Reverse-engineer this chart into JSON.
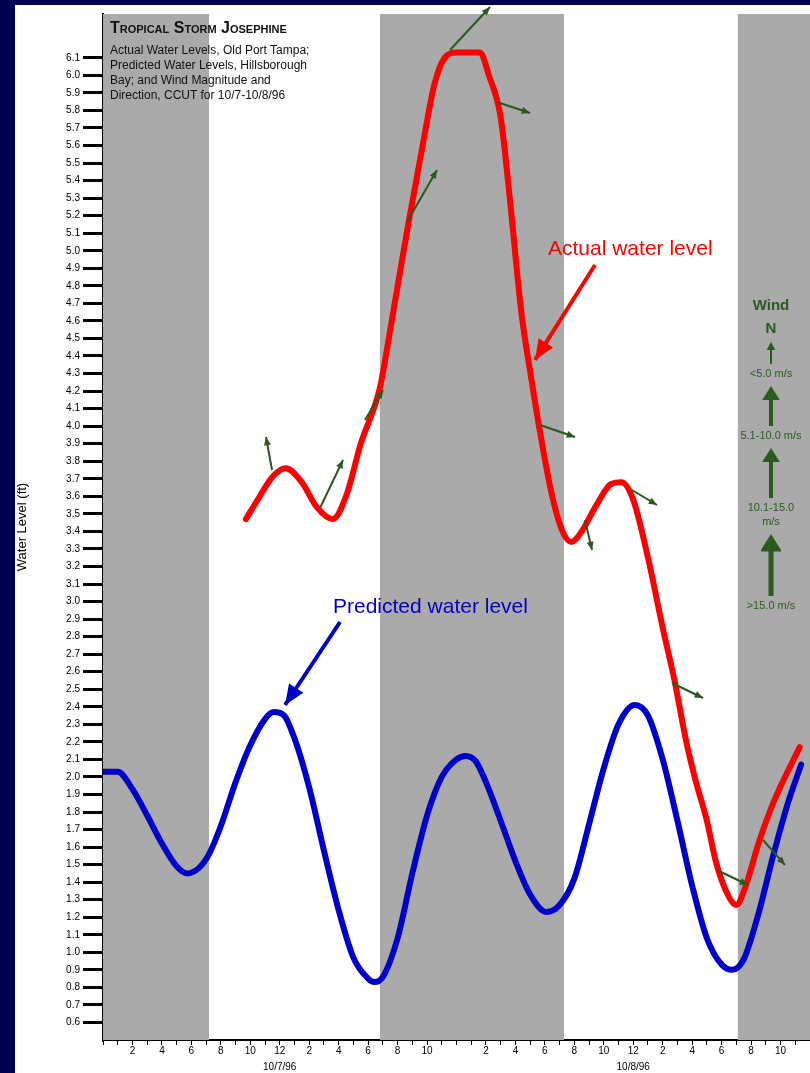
{
  "chart_data": {
    "type": "line",
    "title": "Tropical Storm Josephine",
    "subtitle": "Actual Water Levels, Old Port Tampa; Predicted Water Levels, Hillsborough Bay; and Wind Magnitude and Direction, CCUT for 10/7-10/8/96",
    "ylabel": "Water Level (ft)",
    "xlim": [
      "--10-07T00:00",
      "--10-09T00:00"
    ],
    "xticks": [
      {
        "value": "--10-07T00:00",
        "label": null
      },
      {
        "value": "--10-07T01:00",
        "label": null
      },
      {
        "value": "--10-07T02:00",
        "label": "2"
      },
      {
        "value": "--10-07T03:00",
        "label": null
      },
      {
        "value": "--10-07T04:00",
        "label": "4"
      },
      {
        "value": "--10-07T05:00",
        "label": null
      },
      {
        "value": "--10-07T06:00",
        "label": "6"
      },
      {
        "value": "--10-07T07:00",
        "label": null
      },
      {
        "value": "--10-07T08:00",
        "label": "8"
      },
      {
        "value": "--10-07T09:00",
        "label": null
      },
      {
        "value": "--10-07T10:00",
        "label": "10"
      },
      {
        "value": "--10-07T11:00",
        "label": null
      },
      {
        "value": "--10-07T12:00",
        "label": "12"
      },
      {
        "value": "--10-07T13:00",
        "label": null
      },
      {
        "value": "--10-07T14:00",
        "label": "2"
      },
      {
        "value": "--10-07T15:00",
        "label": null
      },
      {
        "value": "--10-07T16:00",
        "label": "4"
      },
      {
        "value": "--10-07T17:00",
        "label": null
      },
      {
        "value": "--10-07T18:00",
        "label": "6"
      },
      {
        "value": "--10-07T19:00",
        "label": null
      },
      {
        "value": "--10-07T20:00",
        "label": "8"
      },
      {
        "value": "--10-07T21:00",
        "label": null
      },
      {
        "value": "--10-07T22:00",
        "label": "10"
      },
      {
        "value": "--10-07T23:00",
        "label": null
      },
      {
        "value": "--10-08T00:00",
        "label": null
      },
      {
        "value": "--10-08T01:00",
        "label": null
      },
      {
        "value": "--10-08T02:00",
        "label": "2"
      },
      {
        "value": "--10-08T03:00",
        "label": null
      },
      {
        "value": "--10-08T04:00",
        "label": "4"
      },
      {
        "value": "--10-08T05:00",
        "label": null
      },
      {
        "value": "--10-08T06:00",
        "label": "6"
      },
      {
        "value": "--10-08T07:00",
        "label": null
      },
      {
        "value": "--10-08T08:00",
        "label": "8"
      },
      {
        "value": "--10-08T09:00",
        "label": null
      },
      {
        "value": "--10-08T10:00",
        "label": "10"
      },
      {
        "value": "--10-08T11:00",
        "label": null
      },
      {
        "value": "--10-08T12:00",
        "label": "12"
      },
      {
        "value": "--10-08T13:00",
        "label": null
      },
      {
        "value": "--10-08T14:00",
        "label": "2"
      },
      {
        "value": "--10-08T15:00",
        "label": null
      },
      {
        "value": "--10-08T16:00",
        "label": "4"
      },
      {
        "value": "--10-08T17:00",
        "label": null
      },
      {
        "value": "--10-08T18:00",
        "label": "6"
      },
      {
        "value": "--10-08T19:00",
        "label": null
      },
      {
        "value": "--10-08T20:00",
        "label": "8"
      },
      {
        "value": "--10-08T21:00",
        "label": null
      },
      {
        "value": "--10-08T22:00",
        "label": "10"
      },
      {
        "value": "--10-08T23:00",
        "label": null
      }
    ],
    "ylim": [
      0.5,
      6.35
    ],
    "yticks": [
      0.6,
      0.7,
      0.8,
      0.9,
      {
        "value": 1,
        "label": "1.0"
      },
      1.1,
      1.2,
      1.3,
      1.4,
      1.5,
      1.6,
      1.7,
      1.8,
      1.9,
      {
        "value": 2,
        "label": "2.0"
      },
      2.1,
      2.2,
      2.3,
      2.4,
      2.5,
      2.6,
      2.7,
      2.8,
      2.9,
      {
        "value": 3,
        "label": "3.0"
      },
      3.1,
      3.2,
      3.3,
      3.4,
      3.5,
      3.6,
      3.7,
      3.8,
      3.9,
      {
        "value": 4,
        "label": "4.0"
      },
      4.1,
      4.2,
      4.3,
      4.4,
      4.5,
      4.6,
      4.7,
      4.8,
      4.9,
      {
        "value": 5,
        "label": "5.0"
      },
      5.1,
      5.2,
      5.3,
      5.4,
      5.5,
      5.6,
      5.7,
      5.8,
      5.9,
      {
        "value": 6,
        "label": "6.0"
      },
      6.1
    ],
    "bands": [
      {
        "axis": "x",
        "from": "--10-07T00:00",
        "to": "--10-07T07:12",
        "color": "#aaaaaa"
      },
      {
        "axis": "x",
        "from": "--10-07T18:48",
        "to": "--10-08T07:18",
        "color": "#aaaaaa"
      },
      {
        "axis": "x",
        "from": "--10-08T19:06",
        "to": "--10-09T00:00",
        "color": "#aaaaaa"
      }
    ],
    "series": [
      {
        "name": "Actual water level",
        "color": "#ff0000",
        "x": [
          "--10-07T09:42",
          "--10-07T10:30",
          "--10-07T11:30",
          "--10-07T12:24",
          "--10-07T13:30",
          "--10-07T14:30",
          "--10-07T15:36",
          "--10-07T16:30",
          "--10-07T17:30",
          "--10-07T18:48",
          "--10-07T19:36",
          "--10-07T20:42",
          "--10-07T21:42",
          "--10-07T22:30",
          "--10-07T23:12",
          "--10-08T00:00",
          "--10-08T01:36",
          "--10-08T02:12",
          "--10-08T03:00",
          "--10-08T03:42",
          "--10-08T04:24",
          "--10-08T05:06",
          "--10-08T05:36",
          "--10-08T06:30",
          "--10-08T07:12",
          "--10-08T07:48",
          "--10-08T08:30",
          "--10-08T09:30",
          "--10-08T10:30",
          "--10-08T11:12",
          "--10-08T12:00",
          "--10-08T13:00",
          "--10-08T14:00",
          "--10-08T14:48",
          "--10-08T15:36",
          "--10-08T16:12",
          "--10-08T17:00",
          "--10-08T17:36",
          "--10-08T18:18",
          "--10-08T19:00",
          "--10-08T19:36",
          "--10-08T20:30",
          "--10-08T21:30",
          "--10-08T23:18"
        ],
        "values": [
          3.47,
          3.58,
          3.71,
          3.76,
          3.68,
          3.54,
          3.47,
          3.6,
          3.9,
          4.22,
          4.6,
          5.14,
          5.6,
          5.95,
          6.1,
          6.13,
          6.13,
          6,
          5.76,
          5.23,
          4.65,
          4.26,
          4,
          3.6,
          3.4,
          3.34,
          3.4,
          3.55,
          3.67,
          3.68,
          3.58,
          3.25,
          2.85,
          2.55,
          2.2,
          1.99,
          1.75,
          1.52,
          1.35,
          1.27,
          1.37,
          1.62,
          1.85,
          2.17
        ]
      },
      {
        "name": "Predicted water level",
        "color": "#0000cc",
        "x": [
          "--10-07T00:00",
          "--10-07T01:00",
          "--10-07T02:00",
          "--10-07T03:00",
          "--10-07T04:00",
          "--10-07T05:00",
          "--10-07T05:42",
          "--10-07T06:30",
          "--10-07T07:12",
          "--10-07T08:00",
          "--10-07T09:00",
          "--10-07T10:00",
          "--10-07T11:00",
          "--10-07T11:36",
          "--10-07T12:18",
          "--10-07T13:00",
          "--10-07T14:00",
          "--10-07T15:00",
          "--10-07T16:00",
          "--10-07T17:00",
          "--10-07T18:00",
          "--10-07T18:24",
          "--10-07T19:00",
          "--10-07T20:00",
          "--10-07T21:00",
          "--10-07T22:00",
          "--10-07T23:00",
          "--10-08T00:00",
          "--10-08T00:36",
          "--10-08T01:18",
          "--10-08T02:00",
          "--10-08T03:00",
          "--10-08T04:00",
          "--10-08T05:00",
          "--10-08T06:06",
          "--10-08T07:00",
          "--10-08T08:00",
          "--10-08T09:00",
          "--10-08T10:00",
          "--10-08T11:00",
          "--10-08T12:06",
          "--10-08T13:00",
          "--10-08T14:00",
          "--10-08T15:00",
          "--10-08T16:00",
          "--10-08T17:00",
          "--10-08T18:00",
          "--10-08T18:42",
          "--10-08T19:30",
          "--10-08T20:30",
          "--10-08T21:30",
          "--10-08T22:30",
          "--10-08T23:24"
        ],
        "values": [
          2.03,
          2.03,
          1.93,
          1.78,
          1.62,
          1.49,
          1.45,
          1.48,
          1.56,
          1.72,
          1.97,
          2.18,
          2.33,
          2.37,
          2.35,
          2.22,
          1.94,
          1.58,
          1.24,
          0.97,
          0.85,
          0.83,
          0.86,
          1.08,
          1.45,
          1.78,
          2,
          2.1,
          2.12,
          2.09,
          1.97,
          1.75,
          1.52,
          1.33,
          1.23,
          1.27,
          1.42,
          1.73,
          2.05,
          2.3,
          2.41,
          2.35,
          2.1,
          1.75,
          1.38,
          1.08,
          0.93,
          0.9,
          0.96,
          1.22,
          1.55,
          1.85,
          2.07
        ]
      }
    ],
    "annotations": [
      "Wind",
      "N",
      "<5.0 m/s",
      "5.1-10.0 m/s",
      "10.1-15.0 m/s",
      ">15.0 m/s",
      "10/7/96",
      "10/8/96"
    ]
  }
}
